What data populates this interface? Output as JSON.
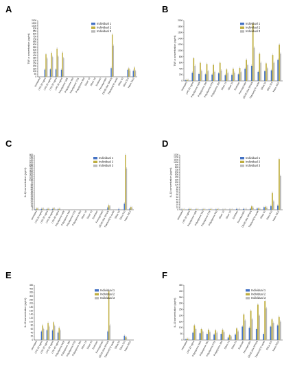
{
  "colors": {
    "individual_1": "#4472c4",
    "individual_2": "#bfae3f",
    "individual_3": "#b8b8b8"
  },
  "chart_data": [
    {
      "panel": "A",
      "type": "bar",
      "ylabel": "TNF-α concentration (pg/ml)",
      "yticks": [
        "0",
        "50",
        "100",
        "150",
        "200",
        "250",
        "300",
        "350",
        "400",
        "450",
        "500",
        "550",
        "600",
        "650",
        "700",
        "750",
        "800",
        "850",
        "900",
        "1000",
        "1500",
        "2000"
      ],
      "ylim": [
        0,
        2000
      ],
      "categories": [
        "Untreated",
        "LPS 20 ng/ml",
        "LPS 20 ng/ml",
        "LPS 20 ng/ml",
        "LPS 40 ng/ml",
        "Polystyrene 180r",
        "Polystyrene 180",
        "Polystyrene 275r",
        "Polystyrene 300",
        "Silver 10",
        "Silver 20",
        "Endosan",
        "Fenoxyclodin",
        "DEAE-dex SPION",
        "Titanium(IV) oxide",
        "Silica 50",
        "Silica 310",
        "Nano SiO2"
      ],
      "series": [
        {
          "name": "Individual 1",
          "values": [
            0,
            255,
            265,
            262,
            250,
            0,
            0,
            0,
            0,
            0,
            0,
            0,
            0,
            310,
            0,
            0,
            250,
            210
          ]
        },
        {
          "name": "Individual 2",
          "values": [
            0,
            800,
            850,
            1000,
            860,
            0,
            0,
            0,
            0,
            0,
            0,
            0,
            0,
            1500,
            0,
            0,
            300,
            330
          ]
        },
        {
          "name": "Individual 3",
          "values": [
            0,
            650,
            700,
            720,
            660,
            0,
            0,
            0,
            0,
            0,
            0,
            0,
            0,
            1100,
            0,
            0,
            220,
            200
          ]
        }
      ],
      "legend": [
        "Individual 1",
        "Individual 2",
        "Individual 3"
      ],
      "legend_position": "top-right"
    },
    {
      "panel": "B",
      "type": "bar",
      "ylabel": "TNF-α concentration (pg/ml)",
      "yticks": [
        "0",
        "200",
        "400",
        "600",
        "800",
        "1000",
        "1200",
        "1400",
        "1600",
        "1800",
        "2000"
      ],
      "ylim": [
        0,
        2000
      ],
      "categories": [
        "Untreated",
        "LPS 20 ng/ml",
        "Polystyrene 180r",
        "Polystyrene 180",
        "Polystyrene 275r",
        "Polystyrene 300",
        "Silver 10",
        "Silver 20",
        "Endosan",
        "Fenoxyclodin",
        "DEAE-dex SPION",
        "Titanium(IV) oxide",
        "Silica 50",
        "Silica 310",
        "Nano SiO2"
      ],
      "series": [
        {
          "name": "Individual 1",
          "values": [
            20,
            270,
            230,
            220,
            210,
            250,
            190,
            200,
            220,
            400,
            500,
            300,
            320,
            350,
            700
          ]
        },
        {
          "name": "Individual 2",
          "values": [
            40,
            750,
            600,
            560,
            530,
            600,
            380,
            400,
            430,
            700,
            1900,
            900,
            580,
            860,
            1200
          ]
        },
        {
          "name": "Individual 3",
          "values": [
            30,
            500,
            330,
            320,
            300,
            340,
            260,
            270,
            290,
            520,
            1100,
            600,
            420,
            600,
            900
          ]
        }
      ],
      "legend": [
        "Individual 1",
        "Individual 2",
        "Individual 3"
      ],
      "legend_position": "top-right"
    },
    {
      "panel": "C",
      "type": "bar",
      "ylabel": "IL-1β concentration (pg/ml)",
      "yticks": [
        "0",
        "5",
        "10",
        "15",
        "20",
        "25",
        "30",
        "35",
        "40",
        "45",
        "50",
        "55",
        "60",
        "65",
        "70",
        "150",
        "200",
        "250",
        "300",
        "350",
        "400",
        "450",
        "500",
        "550",
        "600",
        "650",
        "700",
        "750",
        "800"
      ],
      "ylim": [
        0,
        800
      ],
      "categories": [
        "Untreated",
        "LPS 20 ng/ml",
        "LPS 20 ng/ml",
        "LPS 30 ng/ml",
        "LPS 40 ng/ml",
        "Polystyrene 180r",
        "Polystyrene 180",
        "Polystyrene 275r",
        "Polystyrene 300",
        "Silver 10",
        "Silver 20",
        "Endosan",
        "Fenoxyclodin",
        "DEAE-dex SPION",
        "Titanium(IV) oxide",
        "Silica 50",
        "Silica 310",
        "Nano SiO2"
      ],
      "series": [
        {
          "name": "Individual 1",
          "values": [
            9,
            12,
            9,
            11,
            8,
            0,
            0,
            0,
            0,
            0,
            0,
            0,
            0,
            34,
            0,
            13,
            90,
            20
          ]
        },
        {
          "name": "Individual 2",
          "values": [
            20,
            16,
            14,
            20,
            13,
            0,
            0,
            0,
            0,
            0,
            0,
            0,
            0,
            68,
            0,
            0,
            800,
            40
          ]
        },
        {
          "name": "Individual 3",
          "values": [
            15,
            14,
            12,
            16,
            11,
            0,
            0,
            0,
            0,
            0,
            0,
            0,
            0,
            50,
            0,
            0,
            600,
            30
          ]
        }
      ],
      "legend": [
        "Individual 1",
        "Individual 2",
        "Individual 3"
      ],
      "legend_position": "top-right"
    },
    {
      "panel": "D",
      "type": "bar",
      "ylabel": "IL-1β concentration (pg/ml)",
      "yticks": [
        "0",
        "10",
        "20",
        "30",
        "40",
        "50",
        "60",
        "70",
        "80",
        "90",
        "100",
        "200",
        "300",
        "400",
        "500",
        "600",
        "700",
        "800",
        "900",
        "1000",
        "1100",
        "1200",
        "1300"
      ],
      "ylim": [
        0,
        1300
      ],
      "categories": [
        "Untreated",
        "LPS 20 ng/ml",
        "Polystyrene 180r",
        "Polystyrene 180",
        "Polystyrene 275r",
        "Polystyrene 300",
        "Silver 10",
        "Silver 20",
        "Endosan",
        "Fenoxyclodin",
        "DEAE-dex SPION",
        "Titanium(IV) oxide",
        "Silica 50",
        "Silica 310",
        "Nano SiO2"
      ],
      "series": [
        {
          "name": "Individual 1",
          "values": [
            5,
            11,
            8,
            9,
            9,
            10,
            2,
            3,
            20,
            20,
            25,
            30,
            60,
            90,
            100
          ]
        },
        {
          "name": "Individual 2",
          "values": [
            8,
            19,
            11,
            12,
            13,
            14,
            4,
            5,
            3,
            3,
            80,
            30,
            70,
            400,
            1200
          ]
        },
        {
          "name": "Individual 3",
          "values": [
            6,
            14,
            9,
            10,
            11,
            12,
            3,
            4,
            20,
            20,
            50,
            20,
            50,
            200,
            800
          ]
        }
      ],
      "legend": [
        "Individual 1",
        "Individual 2",
        "Individual 3"
      ],
      "legend_position": "top-right"
    },
    {
      "panel": "E",
      "type": "bar",
      "ylabel": "IL-10 concentration (pg/ml)",
      "yticks": [
        "0",
        "20",
        "40",
        "60",
        "80",
        "100",
        "120",
        "140",
        "160",
        "180",
        "200",
        "250",
        "300",
        "350",
        "400",
        "450"
      ],
      "ylim": [
        0,
        450
      ],
      "categories": [
        "Untreated",
        "LPS 20 ng/ml",
        "LPS 20 ng/ml",
        "LPS 30 ng/ml",
        "LPS 40 ng/ml",
        "Polystyrene 180r",
        "Polystyrene 180",
        "Polystyrene 275r",
        "Polystyrene 300",
        "Silver 10",
        "Silver 20",
        "Endosan",
        "Fenoxyclodin",
        "DEAE-dex SPION",
        "Titanium(IV) oxide",
        "Silica 50",
        "Silica 310",
        "Nano SiO2"
      ],
      "series": [
        {
          "name": "Individual 1",
          "values": [
            0,
            70,
            80,
            78,
            60,
            0,
            0,
            0,
            0,
            0,
            0,
            0,
            0,
            70,
            0,
            0,
            35,
            0
          ]
        },
        {
          "name": "Individual 2",
          "values": [
            0,
            120,
            140,
            145,
            100,
            0,
            0,
            0,
            0,
            0,
            0,
            0,
            0,
            400,
            0,
            0,
            25,
            0
          ]
        },
        {
          "name": "Individual 3",
          "values": [
            0,
            90,
            110,
            115,
            80,
            0,
            0,
            0,
            0,
            0,
            0,
            0,
            0,
            120,
            0,
            0,
            20,
            0
          ]
        }
      ],
      "legend": [
        "Individual 1",
        "Individual 2",
        "Individual 3"
      ],
      "legend_position": "top-right"
    },
    {
      "panel": "F",
      "type": "bar",
      "ylabel": "IL-10 concentration (pg/ml)",
      "yticks": [
        "0",
        "50",
        "100",
        "150",
        "200",
        "250",
        "300",
        "350",
        "400",
        "450"
      ],
      "ylim": [
        0,
        450
      ],
      "categories": [
        "Untreated",
        "LPS 20 ng/ml",
        "Polystyrene 180r",
        "Polystyrene 180",
        "Polystyrene 275r",
        "Polystyrene 300",
        "Silver 10",
        "Silver 20",
        "Endosan",
        "Fenoxyclodin",
        "DEAE-dex SPION",
        "Titanium(IV) oxide",
        "Silica 310",
        "Nano SiO2"
      ],
      "series": [
        {
          "name": "Individual 1",
          "values": [
            5,
            60,
            55,
            50,
            45,
            50,
            20,
            45,
            110,
            100,
            90,
            50,
            110,
            120
          ]
        },
        {
          "name": "Individual 2",
          "values": [
            10,
            120,
            90,
            85,
            80,
            85,
            40,
            95,
            210,
            240,
            290,
            320,
            170,
            190
          ]
        },
        {
          "name": "Individual 3",
          "values": [
            8,
            90,
            70,
            65,
            60,
            65,
            30,
            70,
            160,
            170,
            200,
            260,
            140,
            150
          ]
        }
      ],
      "legend": [
        "Individual 1",
        "Individual 2",
        "Individual 3"
      ],
      "legend_position": "top-right"
    }
  ]
}
